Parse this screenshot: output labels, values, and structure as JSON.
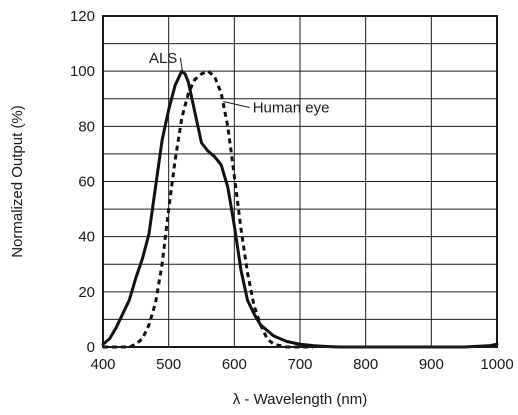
{
  "chart_data": {
    "type": "line",
    "title": "",
    "xlabel": "λ - Wavelength (nm)",
    "ylabel": "Normalized Output (%)",
    "xlim": [
      400,
      1000
    ],
    "ylim": [
      0,
      120
    ],
    "x_ticks": [
      400,
      500,
      600,
      700,
      800,
      900,
      1000
    ],
    "y_ticks": [
      0,
      20,
      40,
      60,
      80,
      100,
      120
    ],
    "grid": true,
    "series": [
      {
        "name": "ALS",
        "style": "solid",
        "color": "#111111",
        "x": [
          400,
          410,
          420,
          430,
          440,
          450,
          460,
          470,
          480,
          490,
          500,
          510,
          520,
          525,
          530,
          540,
          550,
          560,
          570,
          580,
          590,
          600,
          610,
          620,
          630,
          640,
          650,
          660,
          680,
          700,
          720,
          740,
          760,
          780,
          800,
          850,
          900,
          950,
          990,
          1000
        ],
        "y": [
          1,
          3,
          7,
          12,
          17,
          25,
          32,
          41,
          58,
          75,
          86,
          95,
          100,
          99,
          96,
          85,
          74,
          71,
          69,
          66,
          58,
          44,
          28,
          17,
          12,
          8,
          6,
          4,
          2,
          1,
          0.5,
          0.2,
          0,
          0,
          0,
          0,
          0,
          0,
          0.5,
          1
        ]
      },
      {
        "name": "Human eye",
        "style": "dashed",
        "color": "#111111",
        "x": [
          400,
          420,
          440,
          450,
          460,
          470,
          480,
          490,
          500,
          510,
          520,
          530,
          540,
          550,
          560,
          570,
          580,
          590,
          600,
          610,
          620,
          630,
          640,
          650,
          660,
          670,
          680,
          700,
          720
        ],
        "y": [
          0,
          0,
          0,
          1,
          3,
          8,
          16,
          30,
          50,
          68,
          83,
          92,
          97,
          99,
          100,
          98,
          92,
          80,
          62,
          43,
          27,
          15,
          8,
          3,
          1,
          0.5,
          0,
          0,
          0
        ]
      }
    ],
    "annotations": [
      {
        "text": "ALS",
        "x": 470,
        "y": 103,
        "points_to": {
          "x": 521,
          "y": 100
        }
      },
      {
        "text": "Human eye",
        "x": 628,
        "y": 85,
        "points_to": {
          "x": 583,
          "y": 89
        }
      }
    ]
  }
}
